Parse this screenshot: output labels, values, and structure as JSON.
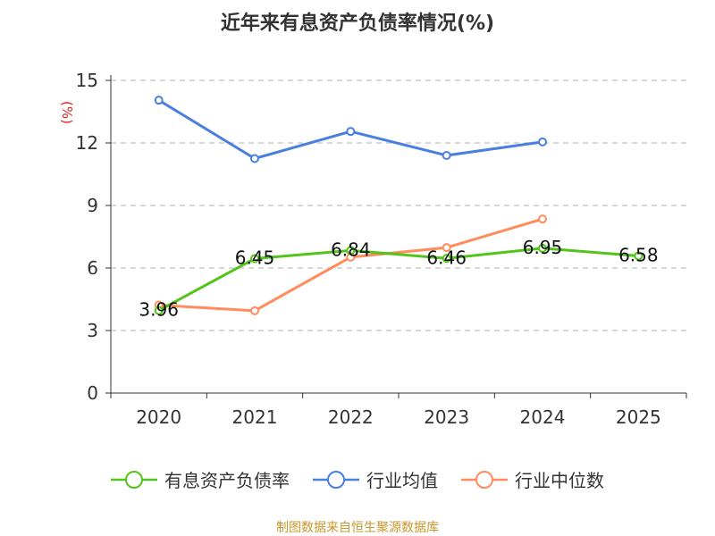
{
  "chart_data": {
    "type": "line",
    "title": "近年来有息资产负债率情况(%)",
    "ylabel": "(%)",
    "categories": [
      "2020",
      "2021",
      "2022",
      "2023",
      "2024",
      "2025"
    ],
    "ylim": [
      0,
      15
    ],
    "yticks": [
      0,
      3,
      6,
      9,
      12,
      15
    ],
    "grid": true,
    "legend": "bottom",
    "series": [
      {
        "name": "有息资产负债率",
        "color": "#52c41a",
        "values": [
          3.96,
          6.45,
          6.84,
          6.46,
          6.95,
          6.58
        ],
        "labels": [
          "3.96",
          "6.45",
          "6.84",
          "6.46",
          "6.95",
          "6.58"
        ]
      },
      {
        "name": "行业均值",
        "color": "#4a7ee0",
        "values": [
          14.05,
          11.25,
          12.55,
          11.4,
          12.05,
          null
        ]
      },
      {
        "name": "行业中位数",
        "color": "#ff8c5a",
        "values": [
          4.22,
          3.95,
          6.52,
          6.98,
          8.35,
          null
        ]
      }
    ]
  },
  "source": "制图数据来自恒生聚源数据库"
}
